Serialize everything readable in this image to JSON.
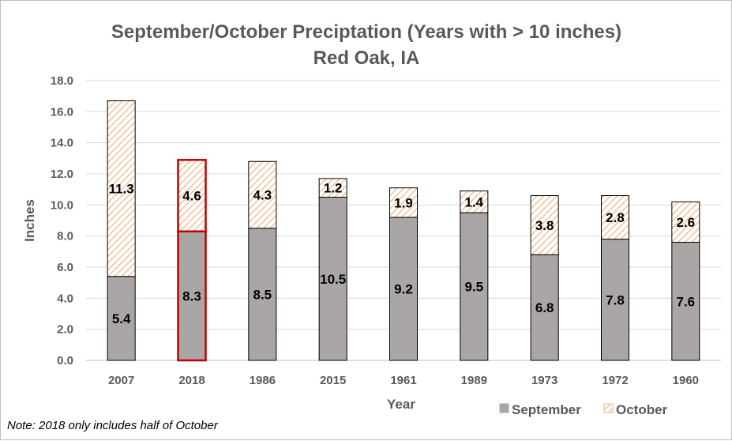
{
  "chart_data": {
    "type": "bar",
    "stacked": true,
    "title": "September/October Preciptation (Years with > 10 inches)",
    "subtitle": "Red Oak, IA",
    "xlabel": "Year",
    "ylabel": "Inches",
    "ylim": [
      0,
      18
    ],
    "ytick_step": 2,
    "ytick_labels": [
      "0.0",
      "2.0",
      "4.0",
      "6.0",
      "8.0",
      "10.0",
      "12.0",
      "14.0",
      "16.0",
      "18.0"
    ],
    "categories": [
      "2007",
      "2018",
      "1986",
      "2015",
      "1961",
      "1989",
      "1973",
      "1972",
      "1960"
    ],
    "series": [
      {
        "name": "September",
        "values": [
          5.4,
          8.3,
          8.5,
          10.5,
          9.2,
          9.5,
          6.8,
          7.8,
          7.6
        ],
        "labels": [
          "5.4",
          "8.3",
          "8.5",
          "10.5",
          "9.2",
          "9.5",
          "6.8",
          "7.8",
          "7.6"
        ],
        "color": "#aaa6a6",
        "pattern": "solid"
      },
      {
        "name": "October",
        "values": [
          11.3,
          4.6,
          4.3,
          1.2,
          1.9,
          1.4,
          3.8,
          2.8,
          2.6
        ],
        "labels": [
          "11.3",
          "4.6",
          "4.3",
          "1.2",
          "1.9",
          "1.4",
          "3.8",
          "2.8",
          "2.6"
        ],
        "color": "#f4b183",
        "pattern": "hatch"
      }
    ],
    "highlight": {
      "category": "2018",
      "color": "#c00000"
    },
    "grid": "horizontal",
    "legend_position": "bottom-right",
    "annotation": "Note: 2018 only includes half of October"
  }
}
